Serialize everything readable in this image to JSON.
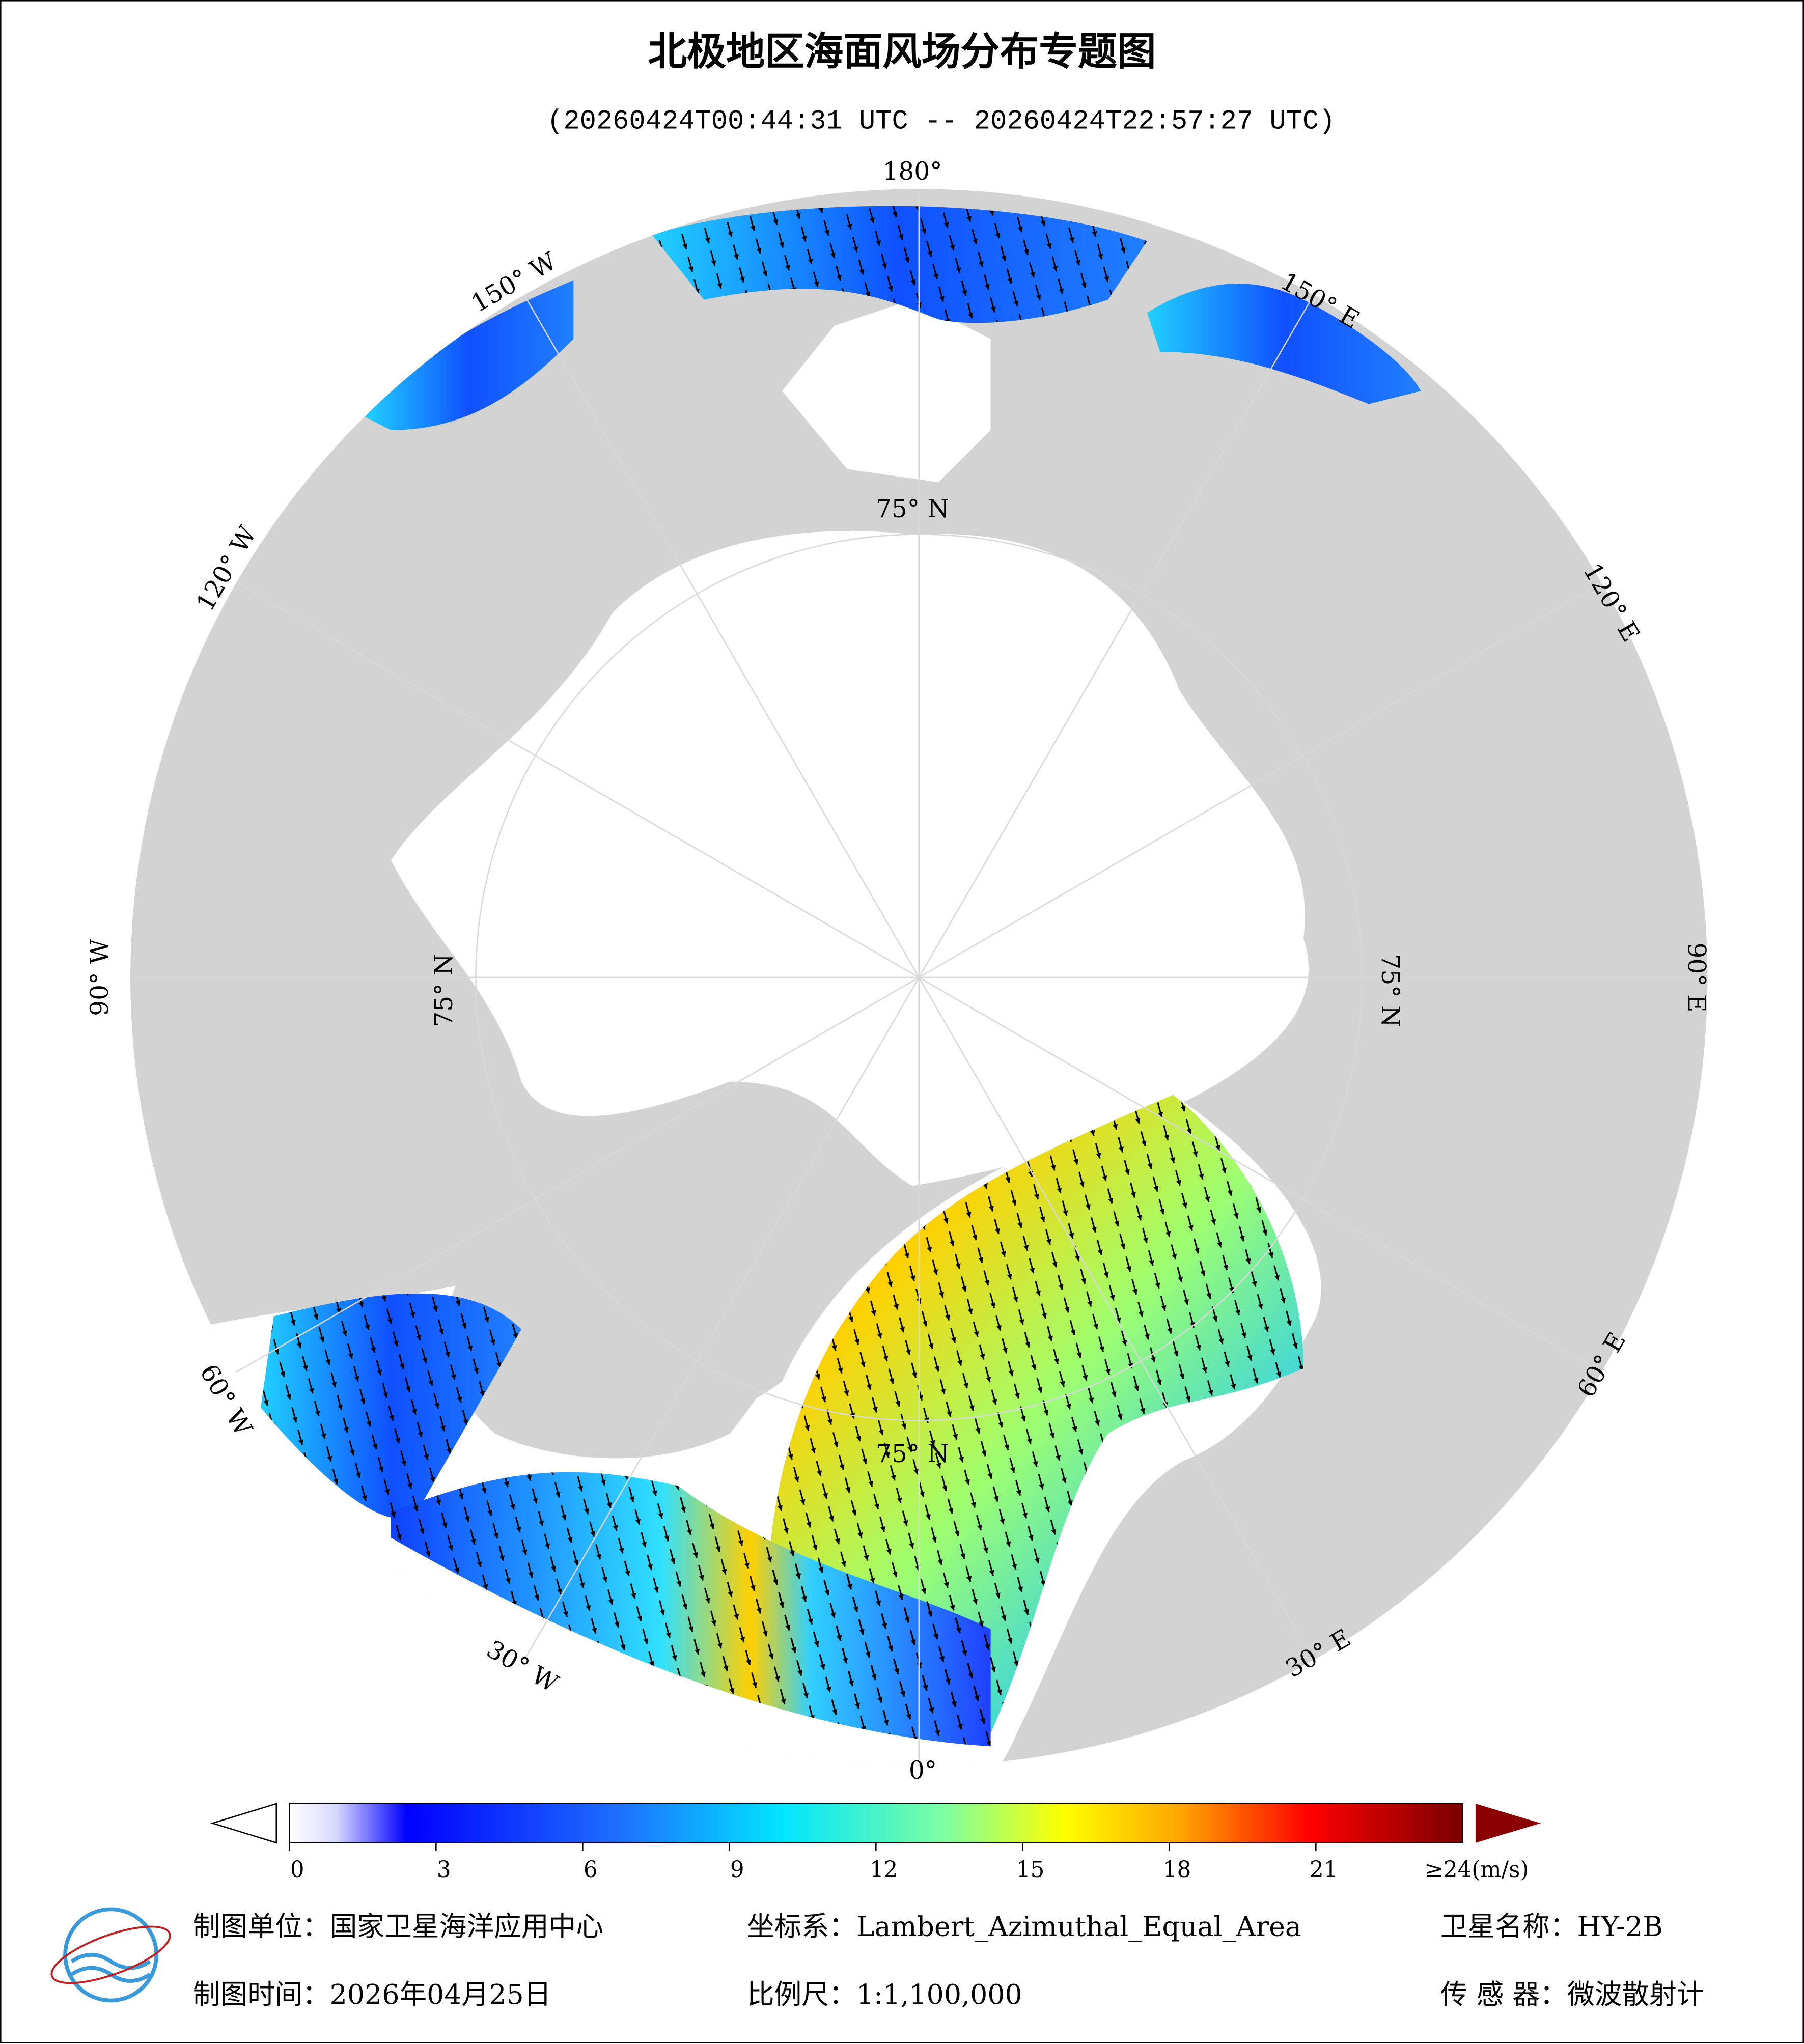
{
  "title": "北极地区海面风场分布专题图",
  "subtitle": "(20260424T00:44:31 UTC -- 20260424T22:57:27 UTC)",
  "map": {
    "lon_labels": [
      "180°",
      "150° W",
      "120° W",
      "90° W",
      "60° W",
      "30° W",
      "0°",
      "30° E",
      "60° E",
      "90° E",
      "120° E",
      "150° E"
    ],
    "lat_labels": [
      "75° N",
      "75° N",
      "75° N",
      "75° N"
    ]
  },
  "colorbar": {
    "lim": [
      0,
      24
    ],
    "ticks": [
      0,
      3,
      6,
      9,
      12,
      15,
      18,
      21
    ],
    "max_label": "≥24(m/s)"
  },
  "footer": {
    "unit": "制图单位：国家卫星海洋应用中心",
    "coords": "坐标系：Lambert_Azimuthal_Equal_Area",
    "satellite": "卫星名称：HY-2B",
    "date": "制图时间：2026年04月25日",
    "scale": "比例尺：1:1,100,000",
    "sensor": "传 感 器：微波散射计"
  }
}
